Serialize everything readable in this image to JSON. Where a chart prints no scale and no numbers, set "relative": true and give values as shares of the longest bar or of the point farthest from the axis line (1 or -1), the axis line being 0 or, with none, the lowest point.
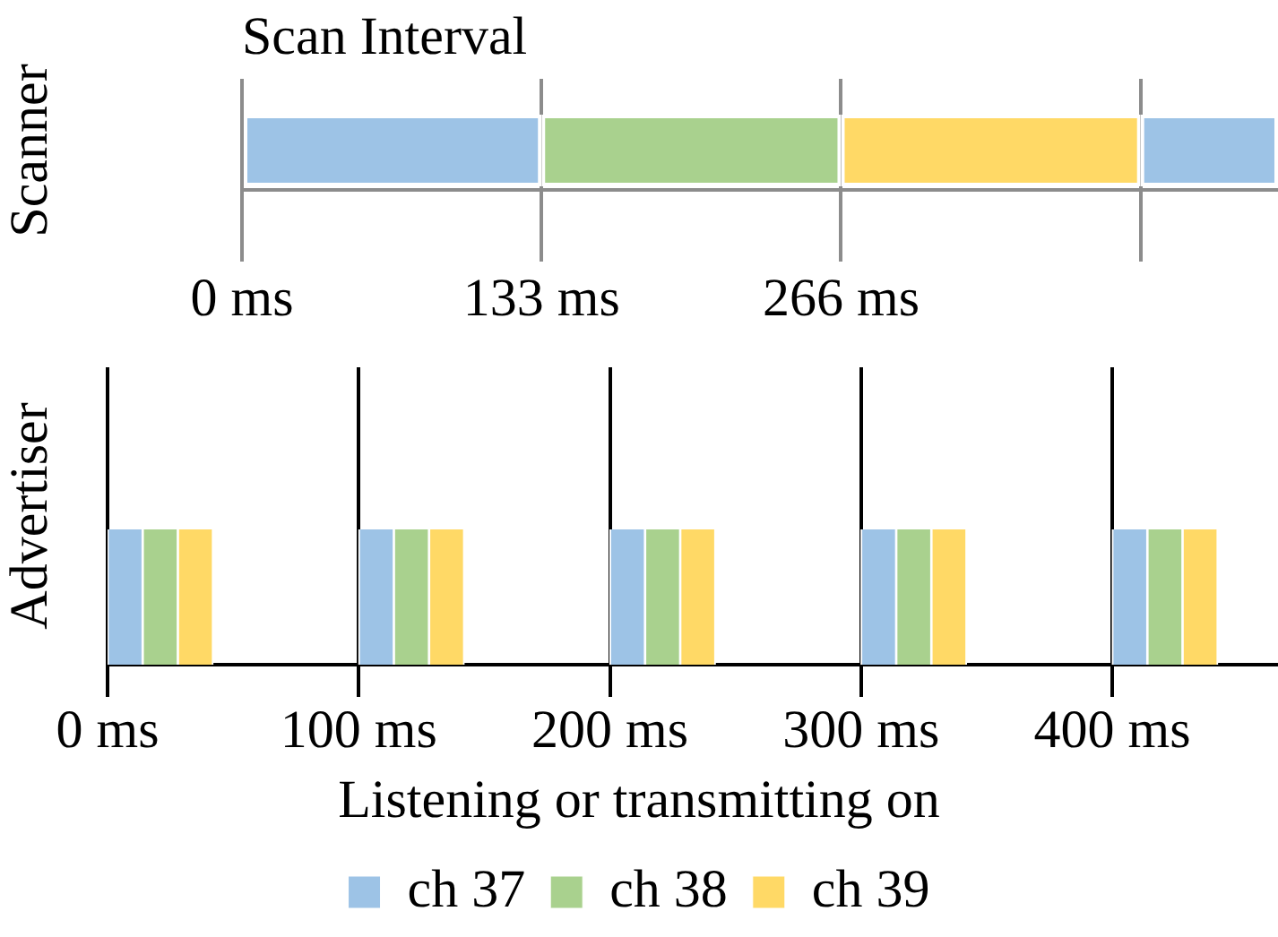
{
  "chart_data": [
    {
      "type": "bar",
      "orientation": "horizontal",
      "stacked": true,
      "title": "Scan Interval",
      "ylabel": "Scanner",
      "categories": [
        null
      ],
      "xlim": [
        0,
        460
      ],
      "xticks": [
        {
          "value": 0,
          "label": "0 ms"
        },
        {
          "value": 133,
          "label": "133 ms"
        },
        {
          "value": 266,
          "label": "266 ms"
        },
        {
          "value": 399,
          "label": null
        }
      ],
      "grid": "x",
      "legend": false,
      "series": [
        {
          "color": "#9dc3e6",
          "values": [
            133
          ]
        },
        {
          "color": "#a9d18e",
          "values": [
            133
          ]
        },
        {
          "color": "#ffd966",
          "values": [
            133
          ]
        },
        {
          "color": "#9dc3e6",
          "values": [
            61
          ]
        }
      ]
    },
    {
      "type": "bar",
      "relative": true,
      "ylabel": "Advertiser",
      "xlim": [
        0,
        466
      ],
      "xticks": [
        {
          "value": 0,
          "label": "0 ms"
        },
        {
          "value": 100,
          "label": "100 ms"
        },
        {
          "value": 200,
          "label": "200 ms"
        },
        {
          "value": 300,
          "label": "300 ms"
        },
        {
          "value": 400,
          "label": "400 ms"
        }
      ],
      "grid": "x",
      "legend": "bottom",
      "legend_title": "Listening or transmitting on",
      "series": [
        {
          "name": "ch 37",
          "color": "#9dc3e6",
          "x": [
            7,
            107,
            207,
            307,
            407
          ],
          "values": [
            1,
            1,
            1,
            1,
            1
          ]
        },
        {
          "name": "ch 38",
          "color": "#a9d18e",
          "x": [
            21,
            121,
            221,
            321,
            421
          ],
          "values": [
            1,
            1,
            1,
            1,
            1
          ]
        },
        {
          "name": "ch 39",
          "color": "#ffd966",
          "x": [
            35,
            135,
            235,
            335,
            435
          ],
          "values": [
            1,
            1,
            1,
            1,
            1
          ]
        }
      ]
    }
  ]
}
